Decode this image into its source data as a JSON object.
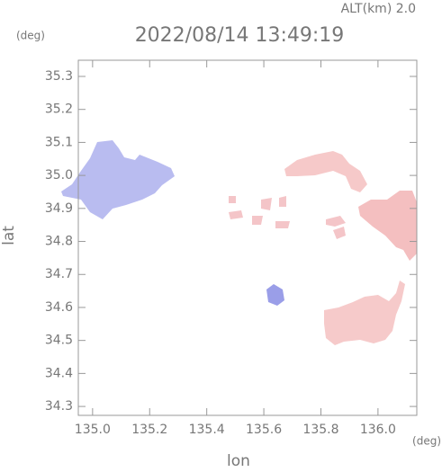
{
  "chart_data": {
    "type": "map",
    "subtitle": "ALT(km) 2.0",
    "title": "2022/08/14 13:49:19",
    "ylabel_unit": "(deg)",
    "xlabel_unit": "(deg)",
    "xlabel": "lon",
    "ylabel": "lat",
    "xlim": [
      134.95,
      136.136
    ],
    "ylim": [
      34.273,
      35.349
    ],
    "xticks": [
      {
        "value": 135.0,
        "label": "135.0"
      },
      135.2,
      135.4,
      135.6,
      135.8,
      {
        "value": 136.0,
        "label": "136.0"
      }
    ],
    "yticks": [
      34.3,
      34.4,
      34.5,
      34.6,
      34.7,
      34.8,
      34.9,
      {
        "value": 35.0,
        "label": "35.0"
      },
      35.1,
      35.2,
      35.3
    ]
  }
}
